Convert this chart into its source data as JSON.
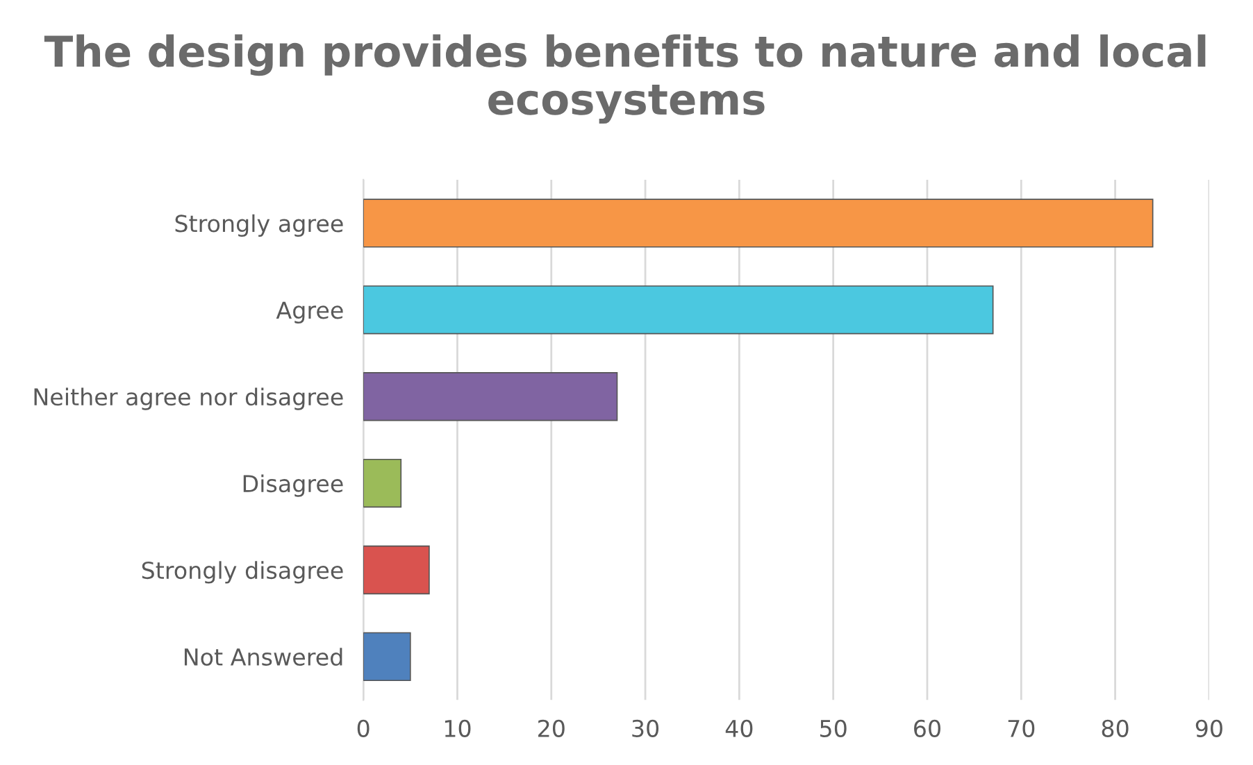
{
  "chart_data": {
    "type": "bar",
    "orientation": "horizontal",
    "title": "The design provides benefits to nature and local ecosystems",
    "categories": [
      "Strongly agree",
      "Agree",
      "Neither agree nor disagree",
      "Disagree",
      "Strongly disagree",
      "Not Answered"
    ],
    "values": [
      84,
      67,
      27,
      4,
      7,
      5
    ],
    "colors": [
      "#f79646",
      "#4bc8e0",
      "#8064a2",
      "#9bbb59",
      "#d9534f",
      "#4f81bd"
    ],
    "xlim": [
      0,
      90
    ],
    "xticks": [
      0,
      10,
      20,
      30,
      40,
      50,
      60,
      70,
      80,
      90
    ],
    "grid": "x",
    "legend": false
  }
}
